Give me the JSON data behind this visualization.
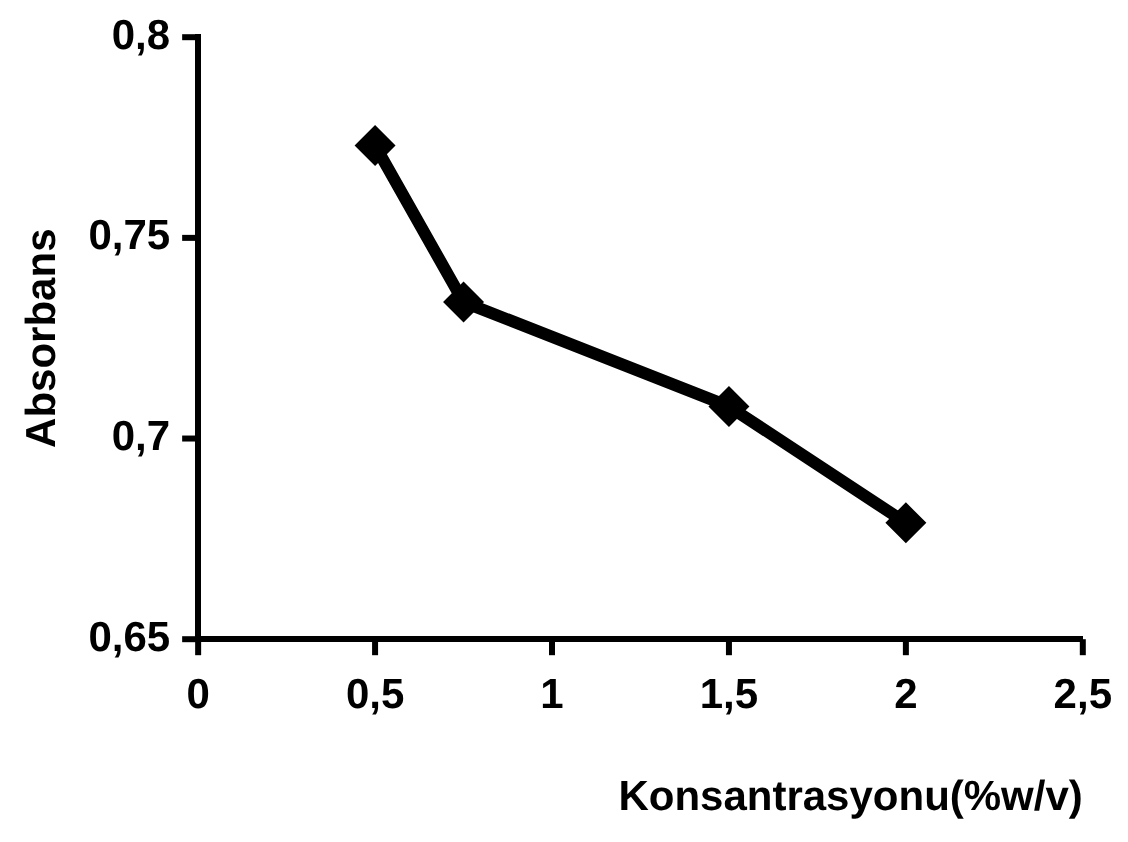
{
  "chart_data": {
    "type": "line",
    "xlabel": "Konsantrasyonu(%w/v)",
    "ylabel": "Absorbans",
    "x": [
      0.5,
      0.75,
      1.5,
      2
    ],
    "series": [
      {
        "color": "#000000",
        "values": [
          0.773,
          0.734,
          0.708,
          0.679
        ]
      }
    ],
    "xlim": [
      0,
      2.5
    ],
    "xticks": [
      0,
      {
        "value": 0.5,
        "label": "0,5"
      },
      1,
      {
        "value": 1.5,
        "label": "1,5"
      },
      2,
      {
        "value": 2.5,
        "label": "2,5"
      }
    ],
    "ylim": [
      0.65,
      0.8
    ],
    "yticks": [
      {
        "value": 0.65,
        "label": "0,65"
      },
      {
        "value": 0.7,
        "label": "0,7"
      },
      {
        "value": 0.75,
        "label": "0,75"
      },
      {
        "value": 0.8,
        "label": "0,8"
      }
    ],
    "grid": false,
    "legend": false,
    "marker": "diamond",
    "line_style": "solid"
  }
}
